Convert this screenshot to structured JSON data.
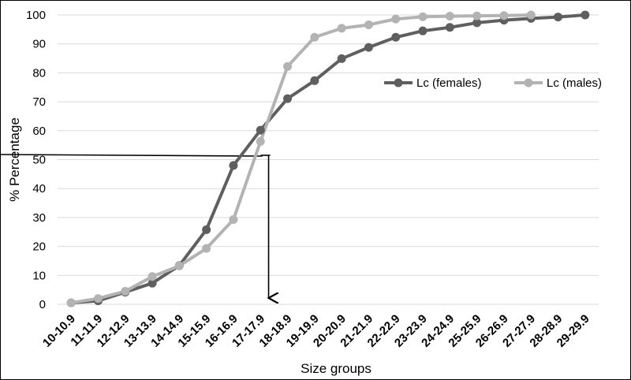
{
  "chart_data": {
    "type": "line",
    "title": "",
    "xlabel": "Size groups",
    "ylabel": "% Percentage",
    "ylim": [
      0,
      100
    ],
    "yticks": [
      0,
      10,
      20,
      30,
      40,
      50,
      60,
      70,
      80,
      90,
      100
    ],
    "grid": "horizontal",
    "legend_position": "right",
    "categories": [
      "10-10.9",
      "11-11.9",
      "12-12.9",
      "13-13.9",
      "14-14.9",
      "15-15.9",
      "16-16.9",
      "17-17.9",
      "18-18.9",
      "19-19.9",
      "20-20.9",
      "21-21.9",
      "22-22.9",
      "23-23.9",
      "24-24.9",
      "25-25.9",
      "26-26.9",
      "27-27.9",
      "28-28.9",
      "29-29.9"
    ],
    "series": [
      {
        "name": "Lc (females)",
        "color": "#5f5f5f",
        "values": [
          0.5,
          1.2,
          4.2,
          7.3,
          13.4,
          25.8,
          48.0,
          60.2,
          71.1,
          77.3,
          84.9,
          88.8,
          92.3,
          94.5,
          95.7,
          97.3,
          98.2,
          98.8,
          99.3,
          100
        ]
      },
      {
        "name": "Lc (males)",
        "color": "#b3b3b3",
        "values": [
          0.5,
          2.0,
          4.5,
          9.6,
          13.3,
          19.3,
          29.3,
          56.3,
          82.2,
          92.3,
          95.4,
          96.6,
          98.6,
          99.4,
          99.6,
          99.7,
          99.8,
          100,
          null,
          null
        ]
      }
    ],
    "annotations": [
      {
        "type": "reference-line",
        "description": "horizontal line at y≈51.5 meeting a downward arrow to the x-axis",
        "y": 51.5,
        "x_category_position": 7.3
      }
    ],
    "colors": {
      "grid": "#d9d9d9",
      "axis": "#000000",
      "annotation": "#000000"
    }
  }
}
